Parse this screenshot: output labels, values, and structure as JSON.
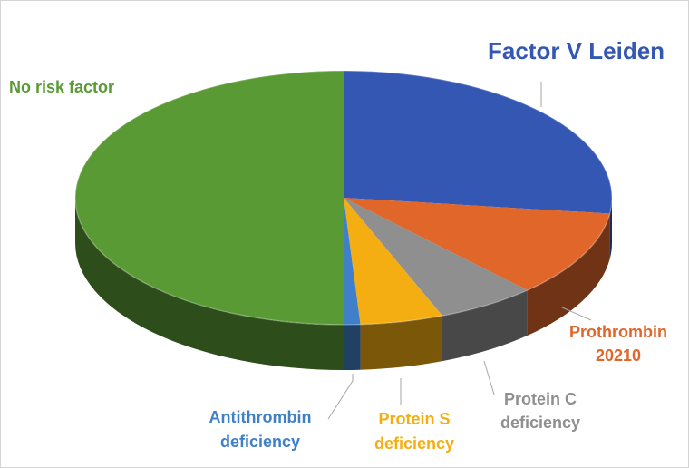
{
  "chart_data": {
    "type": "pie",
    "style": "3d",
    "slices": [
      {
        "label": "Factor V Leiden",
        "value": 27,
        "color": "#3557b4"
      },
      {
        "label": "Prothrombin 20210",
        "value": 11,
        "color": "#e0662a"
      },
      {
        "label": "Protein C deficiency",
        "value": 6,
        "color": "#8f8f8f"
      },
      {
        "label": "Protein S deficiency",
        "value": 5,
        "color": "#f5ae12"
      },
      {
        "label": "Antithrombin deficiency",
        "value": 1,
        "color": "#3f80c8"
      },
      {
        "label": "No risk factor",
        "value": 50,
        "color": "#5a9a35"
      }
    ],
    "labels": {
      "factor_v": "Factor V Leiden",
      "prothrombin_line1": "Prothrombin",
      "prothrombin_line2": "20210",
      "protein_c_line1": "Protein C",
      "protein_c_line2": "deficiency",
      "protein_s_line1": "Protein S",
      "protein_s_line2": "deficiency",
      "antithrombin_line1": "Antithrombin",
      "antithrombin_line2": "deficiency",
      "no_risk": "No risk factor"
    }
  }
}
